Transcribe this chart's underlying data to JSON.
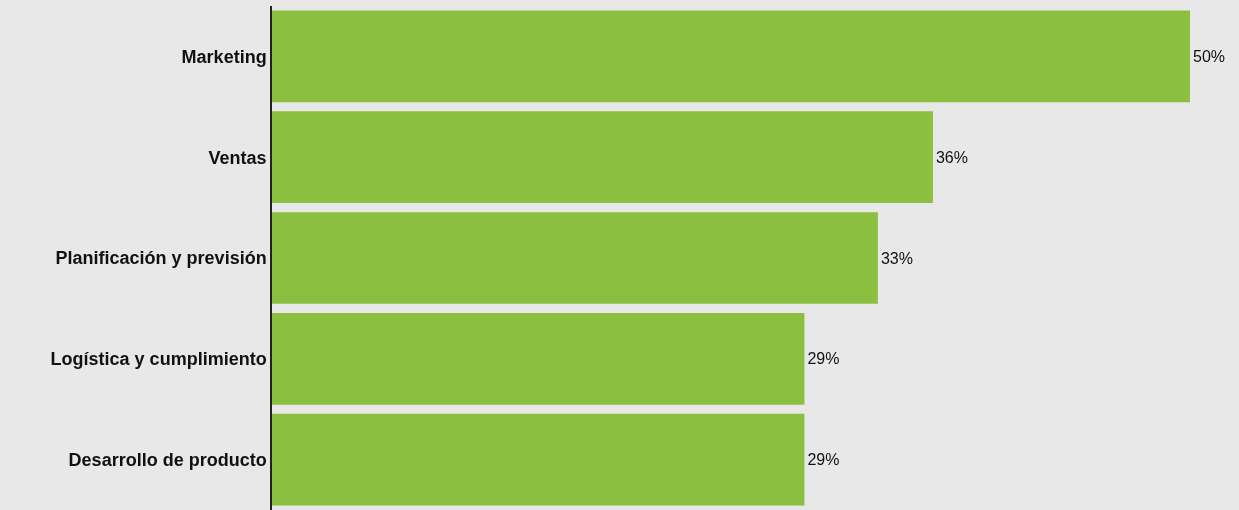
{
  "chart_data": {
    "type": "bar",
    "orientation": "horizontal",
    "categories": [
      "Marketing",
      "Ventas",
      "Planificación y previsión",
      "Logística y cumplimiento",
      "Desarrollo de producto"
    ],
    "values": [
      50,
      36,
      33,
      29,
      29
    ],
    "value_labels": [
      "50%",
      "36%",
      "33%",
      "29%",
      "29%"
    ],
    "color": "#8bbf3f",
    "xlim": [
      0,
      50
    ],
    "grid": false,
    "legend": false
  }
}
